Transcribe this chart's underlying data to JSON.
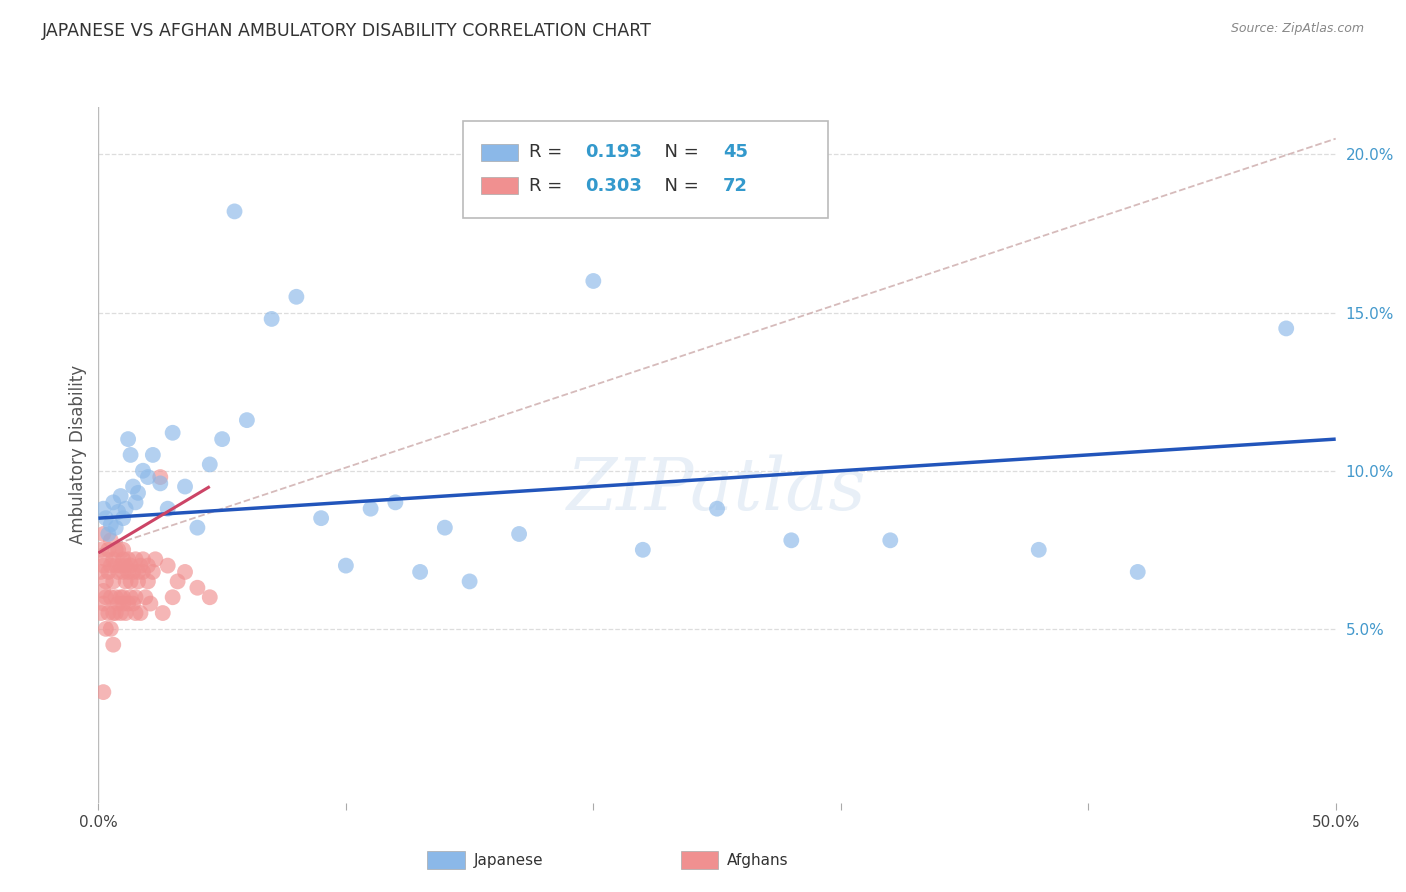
{
  "title": "JAPANESE VS AFGHAN AMBULATORY DISABILITY CORRELATION CHART",
  "source": "Source: ZipAtlas.com",
  "ylabel": "Ambulatory Disability",
  "xlim": [
    0.0,
    0.5
  ],
  "ylim": [
    -0.005,
    0.215
  ],
  "xticks": [
    0.0,
    0.1,
    0.2,
    0.3,
    0.4,
    0.5
  ],
  "xticklabels": [
    "0.0%",
    "",
    "",
    "",
    "",
    "50.0%"
  ],
  "yticks_right": [
    0.05,
    0.1,
    0.15,
    0.2
  ],
  "yticklabels_right": [
    "5.0%",
    "10.0%",
    "15.0%",
    "20.0%"
  ],
  "japanese_color": "#8bb8e8",
  "afghan_color": "#f09090",
  "japanese_line_color": "#2255bb",
  "afghan_line_color": "#cc4466",
  "dashed_line_color": "#ccaaaa",
  "legend_japanese_r": "0.193",
  "legend_japanese_n": "45",
  "legend_afghan_r": "0.303",
  "legend_afghan_n": "72",
  "background_color": "#ffffff",
  "grid_color": "#dddddd",
  "japanese_x": [
    0.002,
    0.003,
    0.004,
    0.005,
    0.006,
    0.007,
    0.008,
    0.009,
    0.01,
    0.011,
    0.012,
    0.013,
    0.014,
    0.015,
    0.016,
    0.018,
    0.02,
    0.022,
    0.025,
    0.028,
    0.03,
    0.035,
    0.04,
    0.045,
    0.05,
    0.055,
    0.06,
    0.07,
    0.08,
    0.09,
    0.1,
    0.11,
    0.12,
    0.13,
    0.14,
    0.15,
    0.17,
    0.2,
    0.22,
    0.25,
    0.28,
    0.32,
    0.38,
    0.42,
    0.48
  ],
  "japanese_y": [
    0.088,
    0.085,
    0.08,
    0.083,
    0.09,
    0.082,
    0.087,
    0.092,
    0.085,
    0.088,
    0.11,
    0.105,
    0.095,
    0.09,
    0.093,
    0.1,
    0.098,
    0.105,
    0.096,
    0.088,
    0.112,
    0.095,
    0.082,
    0.102,
    0.11,
    0.182,
    0.116,
    0.148,
    0.155,
    0.085,
    0.07,
    0.088,
    0.09,
    0.068,
    0.082,
    0.065,
    0.08,
    0.16,
    0.075,
    0.088,
    0.078,
    0.078,
    0.075,
    0.068,
    0.145
  ],
  "afghan_x": [
    0.001,
    0.001,
    0.001,
    0.002,
    0.002,
    0.002,
    0.002,
    0.003,
    0.003,
    0.003,
    0.003,
    0.004,
    0.004,
    0.004,
    0.005,
    0.005,
    0.005,
    0.005,
    0.006,
    0.006,
    0.006,
    0.006,
    0.007,
    0.007,
    0.007,
    0.007,
    0.008,
    0.008,
    0.008,
    0.009,
    0.009,
    0.009,
    0.01,
    0.01,
    0.01,
    0.01,
    0.01,
    0.011,
    0.011,
    0.011,
    0.012,
    0.012,
    0.012,
    0.013,
    0.013,
    0.013,
    0.014,
    0.014,
    0.015,
    0.015,
    0.015,
    0.016,
    0.016,
    0.017,
    0.017,
    0.018,
    0.018,
    0.019,
    0.02,
    0.02,
    0.021,
    0.022,
    0.023,
    0.025,
    0.026,
    0.028,
    0.03,
    0.032,
    0.035,
    0.04,
    0.045,
    0.002
  ],
  "afghan_y": [
    0.068,
    0.055,
    0.075,
    0.062,
    0.07,
    0.058,
    0.08,
    0.06,
    0.072,
    0.05,
    0.065,
    0.055,
    0.068,
    0.075,
    0.06,
    0.07,
    0.05,
    0.078,
    0.055,
    0.065,
    0.072,
    0.045,
    0.06,
    0.07,
    0.055,
    0.075,
    0.058,
    0.068,
    0.075,
    0.06,
    0.07,
    0.055,
    0.058,
    0.068,
    0.072,
    0.06,
    0.075,
    0.055,
    0.065,
    0.07,
    0.058,
    0.068,
    0.072,
    0.06,
    0.065,
    0.07,
    0.058,
    0.068,
    0.055,
    0.072,
    0.06,
    0.068,
    0.065,
    0.07,
    0.055,
    0.068,
    0.072,
    0.06,
    0.065,
    0.07,
    0.058,
    0.068,
    0.072,
    0.098,
    0.055,
    0.07,
    0.06,
    0.065,
    0.068,
    0.063,
    0.06,
    0.03
  ],
  "jap_line_x0": 0.0,
  "jap_line_y0": 0.085,
  "jap_line_x1": 0.5,
  "jap_line_y1": 0.11,
  "afg_line_x0": 0.0,
  "afg_line_y0": 0.074,
  "afg_line_x1": 0.045,
  "afg_line_y1": 0.095,
  "dash_line_x0": 0.0,
  "dash_line_y0": 0.075,
  "dash_line_x1": 0.5,
  "dash_line_y1": 0.205
}
